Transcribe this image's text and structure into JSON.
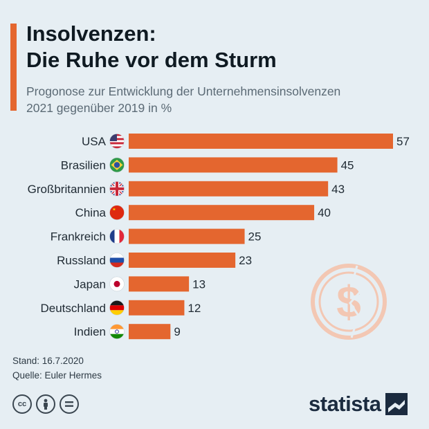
{
  "title_line1": "Insolvenzen:",
  "title_line2": "Die Ruhe vor dem Sturm",
  "subtitle_line1": "Progonose zur Entwicklung der Unternehmensinsolvenzen",
  "subtitle_line2": "2021 gegenüber 2019 in %",
  "footer": {
    "stand": "Stand: 16.7.2020",
    "source": "Quelle: Euler Hermes"
  },
  "license_icons": [
    "cc-icon",
    "by-person-icon",
    "nd-equals-icon"
  ],
  "brand": {
    "name": "statista"
  },
  "colors": {
    "bar": "#e4662f",
    "background": "#e6eef3",
    "accent": "#e4662f"
  },
  "decoration_icon": "cracked-dollar-coin-icon",
  "chart_data": {
    "type": "bar",
    "orientation": "horizontal",
    "categories": [
      "USA",
      "Brasilien",
      "Großbritannien",
      "China",
      "Frankreich",
      "Russland",
      "Japan",
      "Deutschland",
      "Indien"
    ],
    "values": [
      57,
      45,
      43,
      40,
      25,
      23,
      13,
      12,
      9
    ],
    "flags": [
      "us-flag-icon",
      "brazil-flag-icon",
      "uk-flag-icon",
      "china-flag-icon",
      "france-flag-icon",
      "russia-flag-icon",
      "japan-flag-icon",
      "germany-flag-icon",
      "india-flag-icon"
    ],
    "title": "Insolvenzen: Die Ruhe vor dem Sturm",
    "subtitle": "Progonose zur Entwicklung der Unternehmensinsolvenzen 2021 gegenüber 2019 in %",
    "xlim": [
      0,
      57
    ],
    "grid": false,
    "data_labels": true
  }
}
